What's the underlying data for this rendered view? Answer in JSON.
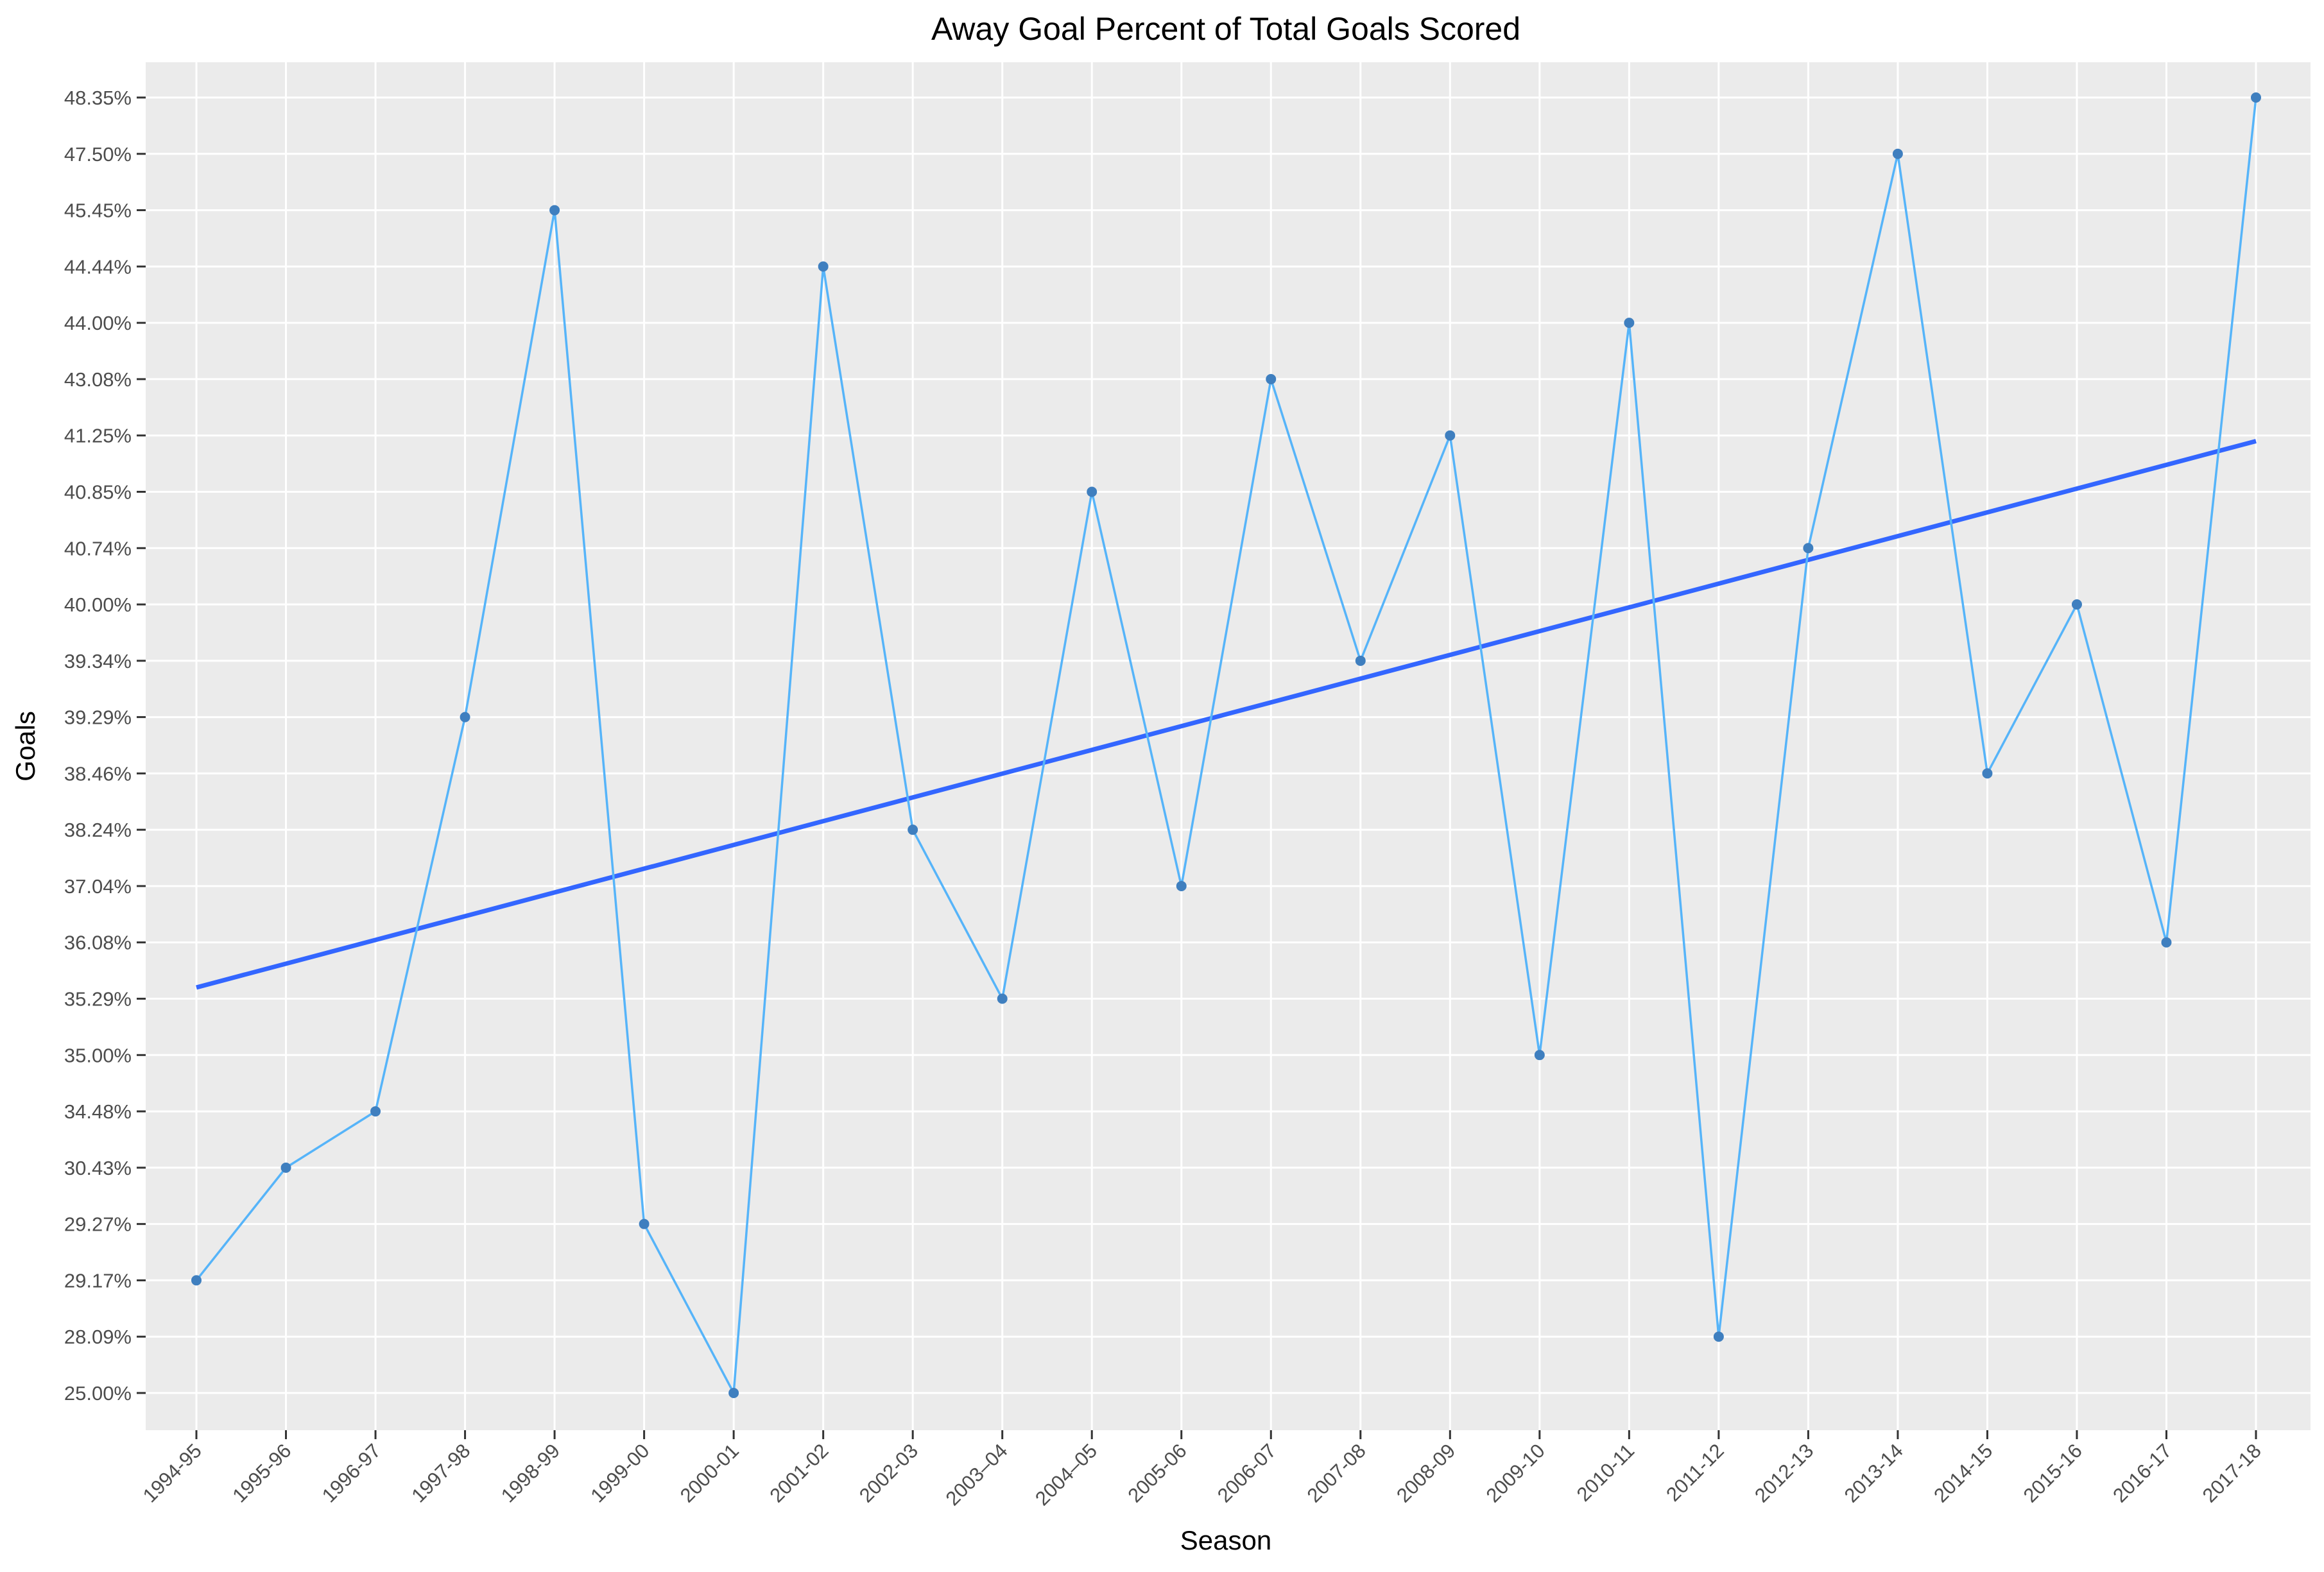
{
  "chart_data": {
    "type": "line",
    "title": "Away Goal Percent of Total Goals Scored",
    "xlabel": "Season",
    "ylabel": "Goals",
    "categories": [
      "1994-95",
      "1995-96",
      "1996-97",
      "1997-98",
      "1998-99",
      "1999-00",
      "2000-01",
      "2001-02",
      "2002-03",
      "2003–04",
      "2004–05",
      "2005-06",
      "2006-07",
      "2007-08",
      "2008-09",
      "2009-10",
      "2010-11",
      "2011-12",
      "2012-13",
      "2013-14",
      "2014-15",
      "2015-16",
      "2016-17",
      "2017-18"
    ],
    "y_ticks": [
      "25.00%",
      "28.09%",
      "29.17%",
      "29.27%",
      "30.43%",
      "34.48%",
      "35.00%",
      "35.29%",
      "36.08%",
      "37.04%",
      "38.24%",
      "38.46%",
      "39.29%",
      "39.34%",
      "40.00%",
      "40.74%",
      "40.85%",
      "41.25%",
      "43.08%",
      "44.00%",
      "44.44%",
      "45.45%",
      "47.50%",
      "48.35%"
    ],
    "y_scale": "discrete",
    "series": [
      {
        "values": [
          "29.17%",
          "30.43%",
          "34.48%",
          "39.29%",
          "45.45%",
          "29.27%",
          "25.00%",
          "44.44%",
          "38.24%",
          "35.29%",
          "40.85%",
          "37.04%",
          "43.08%",
          "39.34%",
          "41.25%",
          "35.00%",
          "44.00%",
          "28.09%",
          "40.74%",
          "47.50%",
          "38.46%",
          "40.00%",
          "36.08%",
          "48.35%"
        ],
        "color": "#56b4f9"
      }
    ],
    "trend_line": {
      "type": "linear",
      "start_y_tick": 7.2,
      "end_y_tick": 16.9,
      "color": "#3366ff"
    },
    "grid": true,
    "legend": "none",
    "colors": {
      "panel": "#ebebeb",
      "grid": "#ffffff",
      "point": "#3f7fbf",
      "line": "#56b4f9",
      "trend": "#3366ff"
    }
  }
}
